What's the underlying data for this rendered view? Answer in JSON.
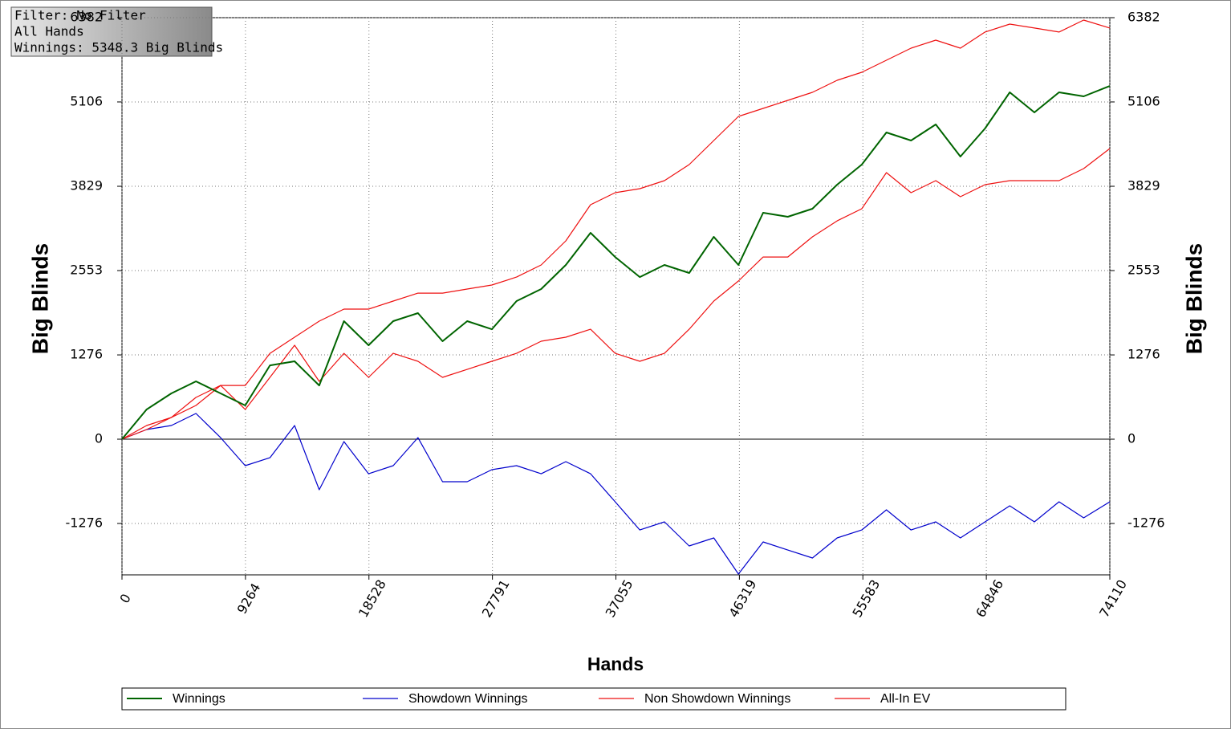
{
  "chart_data": {
    "type": "line",
    "info_box": [
      "Filter: No Filter",
      "All Hands",
      "Winnings: 5348.3 Big Blinds"
    ],
    "y_label": "Big Blinds",
    "y2_label": "Big Blinds",
    "x_label": "Hands",
    "x": [
      0,
      1850,
      3700,
      5550,
      7400,
      9250,
      11100,
      12950,
      14800,
      16650,
      18500,
      20350,
      22200,
      24050,
      25900,
      27750,
      29600,
      31450,
      33300,
      35150,
      37000,
      38850,
      40700,
      42550,
      44400,
      46250,
      48100,
      49950,
      51800,
      53650,
      55500,
      57350,
      59200,
      61050,
      62900,
      64750,
      66600,
      68450,
      70300,
      72150,
      74110
    ],
    "xlim": [
      0,
      74110
    ],
    "xticks": [
      0,
      9264,
      18528,
      27791,
      37055,
      46319,
      55583,
      64846,
      74110
    ],
    "ylim": [
      -2054,
      6382
    ],
    "yticks": [
      -1276,
      0,
      1276,
      2553,
      3829,
      5106,
      6382
    ],
    "y2lim": [
      -2054,
      6382
    ],
    "y2ticks": [
      -1276,
      0,
      1276,
      2553,
      3829,
      5106,
      6382
    ],
    "grid": true,
    "series": [
      {
        "name": "Winnings",
        "color": "#006400",
        "values": [
          0,
          450,
          693,
          875,
          693,
          511,
          1118,
          1179,
          814,
          1787,
          1422,
          1787,
          1909,
          1483,
          1787,
          1665,
          2091,
          2273,
          2638,
          3124,
          2759,
          2455,
          2638,
          2516,
          3063,
          2638,
          3428,
          3367,
          3489,
          3854,
          4158,
          4644,
          4522,
          4765,
          4279,
          4705,
          5252,
          4948,
          5252,
          5191,
          5348
        ]
      },
      {
        "name": "Showdown Winnings",
        "color": "#0000cc",
        "values": [
          0,
          146,
          207,
          389,
          24,
          -401,
          -280,
          207,
          -766,
          -36,
          -523,
          -401,
          24,
          -644,
          -644,
          -462,
          -401,
          -523,
          -340,
          -523,
          -948,
          -1374,
          -1252,
          -1617,
          -1495,
          -2042,
          -1556,
          -1678,
          -1799,
          -1495,
          -1374,
          -1070,
          -1374,
          -1252,
          -1495,
          -1252,
          -1009,
          -1252,
          -948,
          -1191,
          -948
        ]
      },
      {
        "name": "Non Showdown Winnings",
        "color": "#ee1111",
        "values": [
          0,
          146,
          328,
          632,
          814,
          450,
          936,
          1422,
          875,
          1300,
          936,
          1300,
          1179,
          936,
          1057,
          1179,
          1300,
          1483,
          1544,
          1665,
          1300,
          1179,
          1300,
          1665,
          2091,
          2395,
          2759,
          2759,
          3063,
          3306,
          3489,
          4036,
          3732,
          3915,
          3671,
          3854,
          3915,
          3915,
          3915,
          4097,
          4401
        ]
      },
      {
        "name": "All-In EV",
        "color": "#ee1111",
        "values": [
          0,
          207,
          328,
          511,
          814,
          814,
          1300,
          1544,
          1787,
          1970,
          1970,
          2091,
          2212,
          2212,
          2273,
          2334,
          2455,
          2638,
          3003,
          3550,
          3732,
          3793,
          3915,
          4158,
          4522,
          4887,
          5008,
          5130,
          5252,
          5434,
          5556,
          5738,
          5920,
          6042,
          5920,
          6164,
          6285,
          6225,
          6164,
          6346,
          6225
        ]
      }
    ]
  }
}
